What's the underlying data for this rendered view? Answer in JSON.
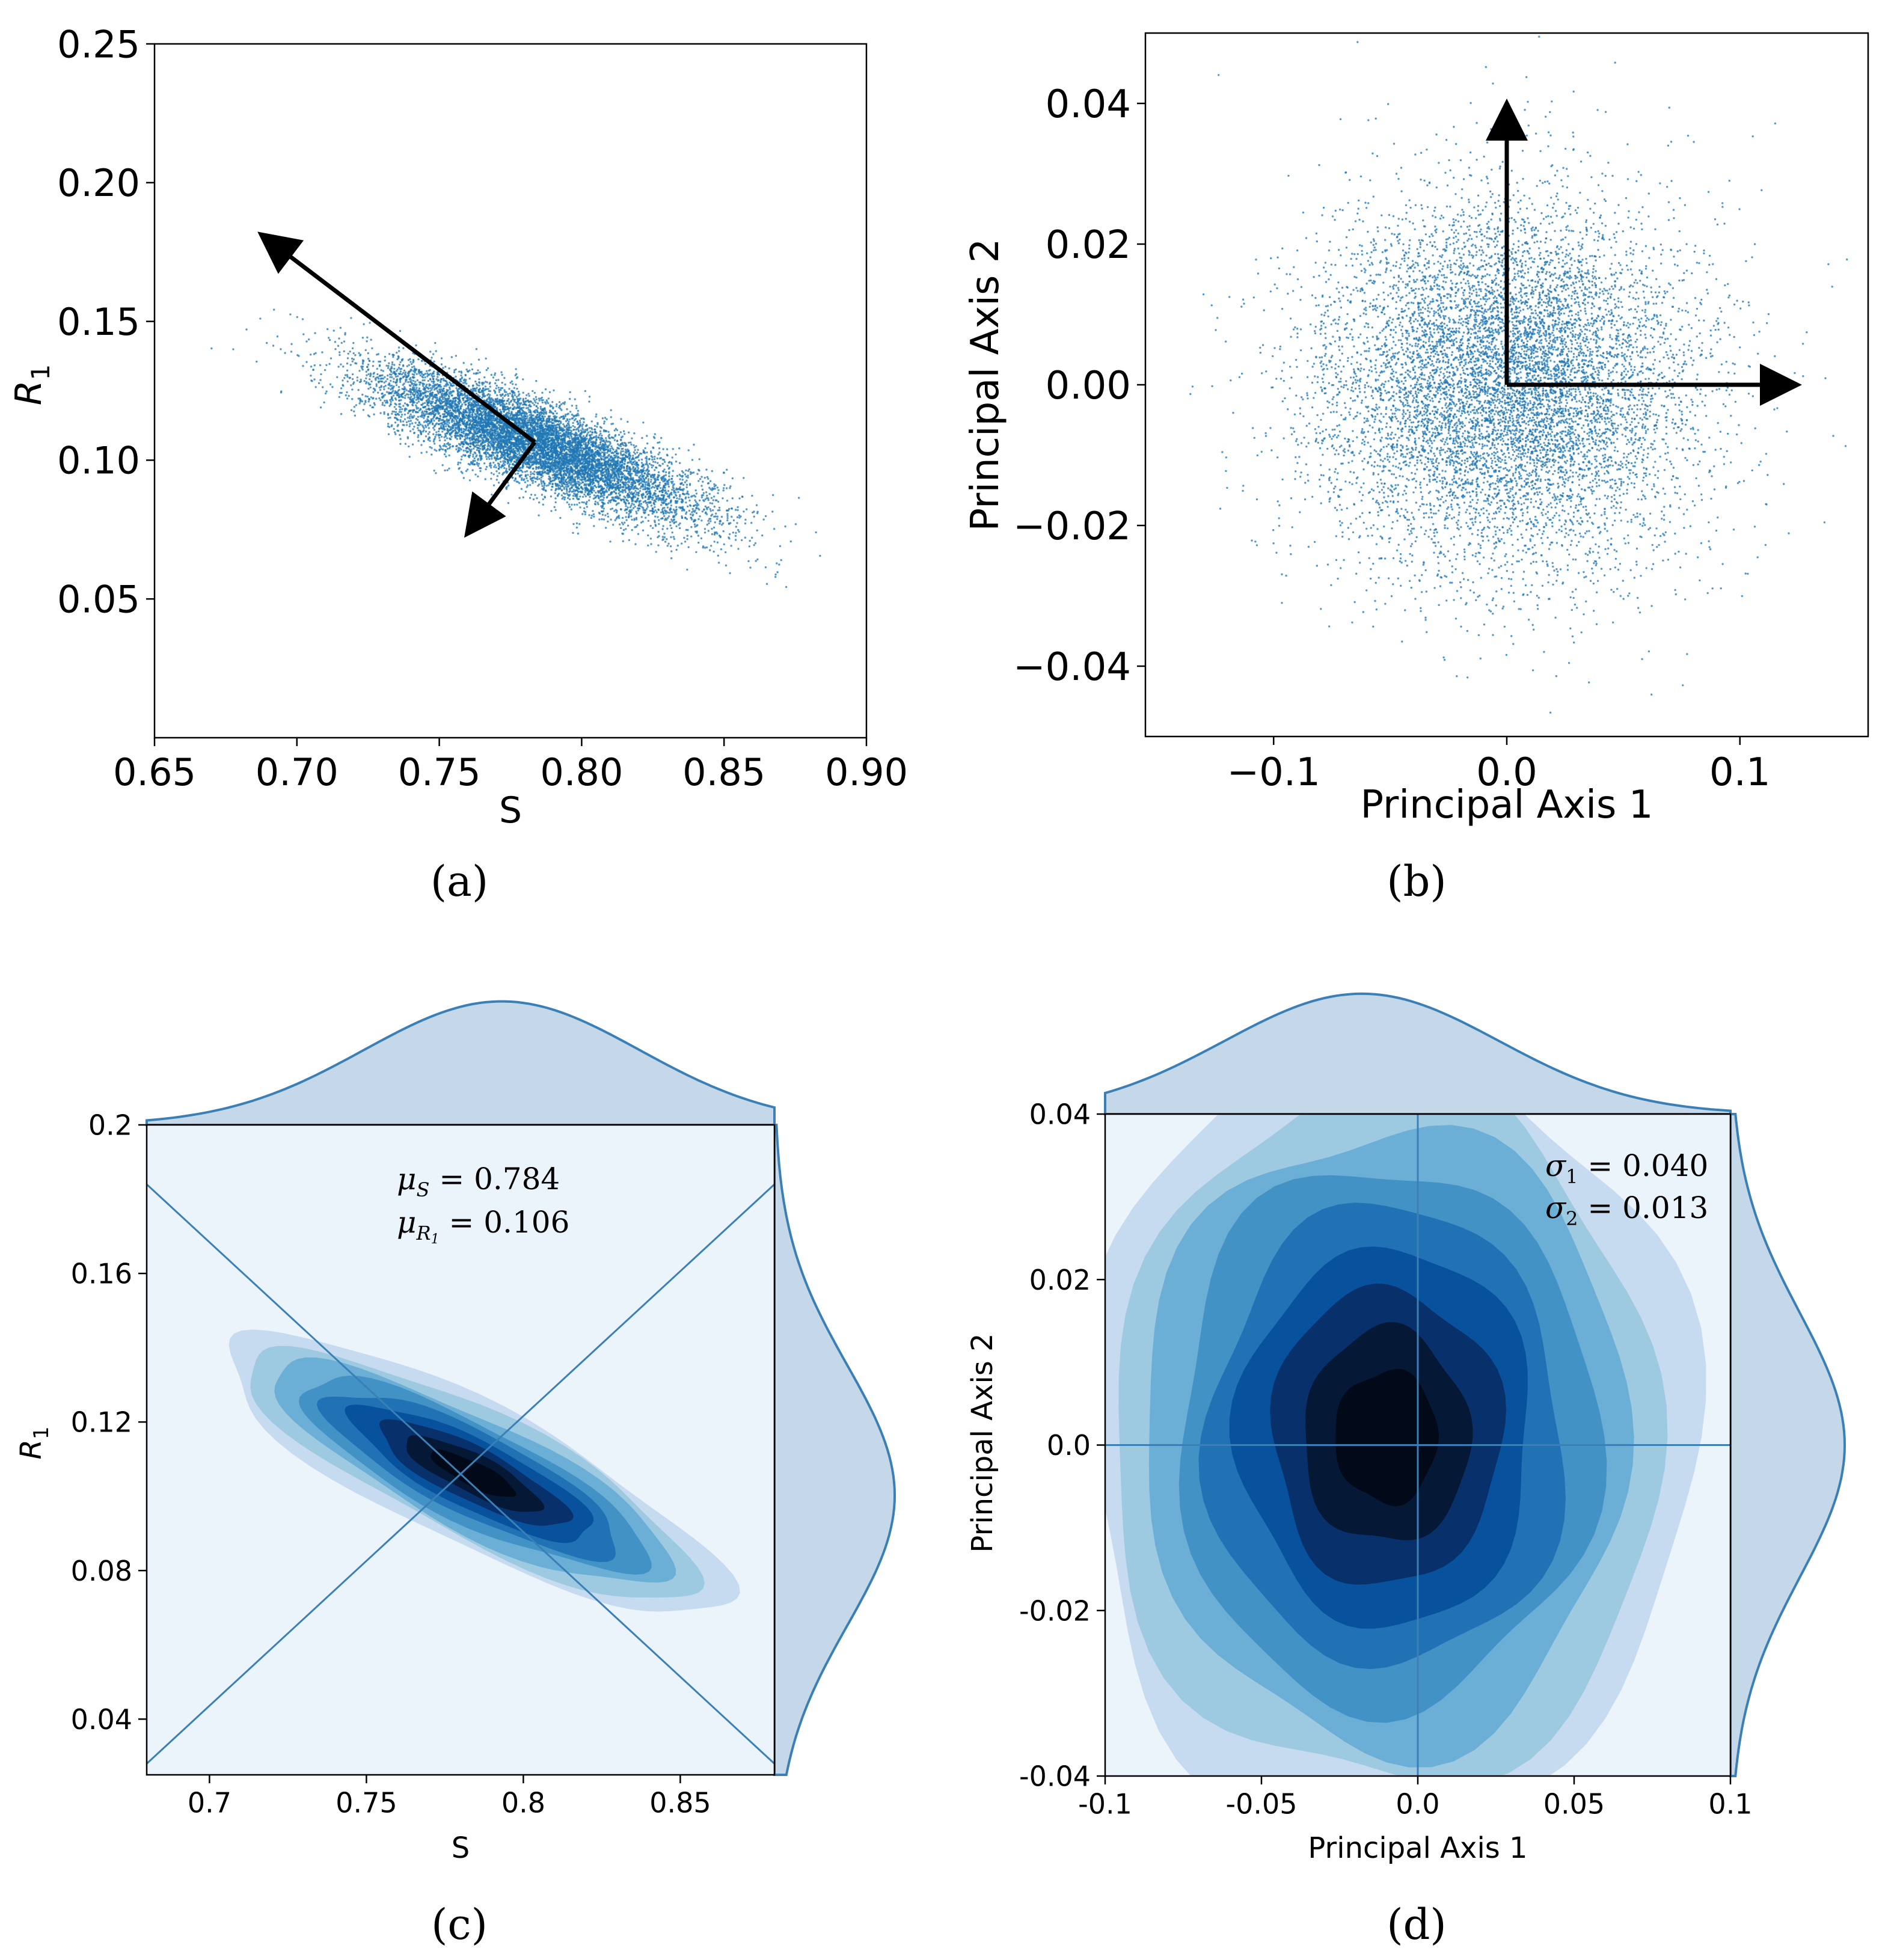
{
  "panels": [
    {
      "id": "a",
      "label": "(a)"
    },
    {
      "id": "b",
      "label": "(b)"
    },
    {
      "id": "c",
      "label": "(c)"
    },
    {
      "id": "d",
      "label": "(d)"
    }
  ],
  "colors": {
    "scatter": "#1f77b4",
    "kde_line": "#3a7fb5",
    "marginal_fill": "#c5d8ea",
    "kde_background": "#ebf3fb",
    "arrow": "#000000"
  },
  "chart_data": [
    {
      "panel": "a",
      "type": "scatter",
      "xlabel": "S",
      "ylabel": "R",
      "ylabel_sub": "1",
      "xlim": [
        0.65,
        0.9
      ],
      "ylim": [
        0.0,
        0.25
      ],
      "xticks": [
        "0.65",
        "0.70",
        "0.75",
        "0.80",
        "0.85",
        "0.90"
      ],
      "xtick_values": [
        0.65,
        0.7,
        0.75,
        0.8,
        0.85,
        0.9
      ],
      "yticks": [
        "0.05",
        "0.10",
        "0.15",
        "0.20",
        "0.25"
      ],
      "ytick_values": [
        0.05,
        0.1,
        0.15,
        0.2,
        0.25
      ],
      "distribution": {
        "center": [
          0.784,
          0.106
        ],
        "sigma_major": 0.04,
        "sigma_minor": 0.013,
        "angle_deg": -29,
        "n_points": 9000,
        "seed": 7
      },
      "arrows": [
        {
          "from": [
            0.7835,
            0.1065
          ],
          "to": [
            0.6885,
            0.1805
          ]
        },
        {
          "from": [
            0.7835,
            0.1065
          ],
          "to": [
            0.7605,
            0.0745
          ]
        }
      ]
    },
    {
      "panel": "b",
      "type": "scatter",
      "xlabel": "Principal Axis 1",
      "ylabel": "Principal Axis 2",
      "xlim": [
        -0.155,
        0.155
      ],
      "ylim": [
        -0.05,
        0.05
      ],
      "xticks": [
        "−0.1",
        "0.0",
        "0.1"
      ],
      "xtick_values": [
        -0.1,
        0.0,
        0.1
      ],
      "yticks": [
        "−0.04",
        "−0.02",
        "0.00",
        "0.02",
        "0.04"
      ],
      "ytick_values": [
        -0.04,
        -0.02,
        0.0,
        0.02,
        0.04
      ],
      "distribution": {
        "center": [
          0.0,
          0.0
        ],
        "sigma_x": 0.04,
        "sigma_y": 0.013,
        "n_points": 9000,
        "seed": 11
      },
      "arrows": [
        {
          "from": [
            0.0,
            0.0
          ],
          "to": [
            0.0,
            0.0395
          ]
        },
        {
          "from": [
            0.0,
            0.0
          ],
          "to": [
            0.123,
            0.0
          ]
        }
      ]
    },
    {
      "panel": "c",
      "type": "heatmap",
      "xlabel": "S",
      "ylabel": "R",
      "ylabel_sub": "1",
      "xlim": [
        0.68,
        0.88
      ],
      "ylim": [
        0.025,
        0.2
      ],
      "xticks": [
        "0.7",
        "0.75",
        "0.8",
        "0.85"
      ],
      "xtick_values": [
        0.7,
        0.75,
        0.8,
        0.85
      ],
      "yticks": [
        "0.04",
        "0.08",
        "0.12",
        "0.16",
        "0.2"
      ],
      "ytick_values": [
        0.04,
        0.08,
        0.12,
        0.16,
        0.2
      ],
      "annotations": [
        "μS = 0.784",
        "μR1 = 0.106"
      ],
      "mean": [
        0.784,
        0.106
      ],
      "density": {
        "center": [
          0.784,
          0.106
        ],
        "sigma_major": 0.04,
        "sigma_minor": 0.013,
        "angle_deg": -29,
        "levels": 9
      },
      "lines": [
        {
          "from": [
            0.68,
            0.184
          ],
          "to": [
            0.88,
            0.028
          ]
        },
        {
          "from": [
            0.68,
            0.028
          ],
          "to": [
            0.88,
            0.184
          ]
        }
      ]
    },
    {
      "panel": "d",
      "type": "heatmap",
      "xlabel": "Principal Axis 1",
      "ylabel": "Principal Axis 2",
      "xlim": [
        -0.1,
        0.1
      ],
      "ylim": [
        -0.04,
        0.04
      ],
      "xticks": [
        "-0.1",
        "-0.05",
        "0.0",
        "0.05",
        "0.1"
      ],
      "xtick_values": [
        -0.1,
        -0.05,
        0.0,
        0.05,
        0.1
      ],
      "yticks": [
        "-0.04",
        "-0.02",
        "0.0",
        "0.02",
        "0.04"
      ],
      "ytick_values": [
        -0.04,
        -0.02,
        0.0,
        0.02,
        0.04
      ],
      "annotations": [
        "σ1 = 0.040",
        "σ2 = 0.013"
      ],
      "density": {
        "center": [
          -0.01,
          0.001
        ],
        "sigma_x": 0.04,
        "sigma_y": 0.013,
        "levels": 9
      },
      "lines": [
        {
          "from": [
            0.0,
            -0.04
          ],
          "to": [
            0.0,
            0.04
          ]
        },
        {
          "from": [
            -0.1,
            0.0
          ],
          "to": [
            0.1,
            0.0
          ]
        }
      ]
    }
  ]
}
